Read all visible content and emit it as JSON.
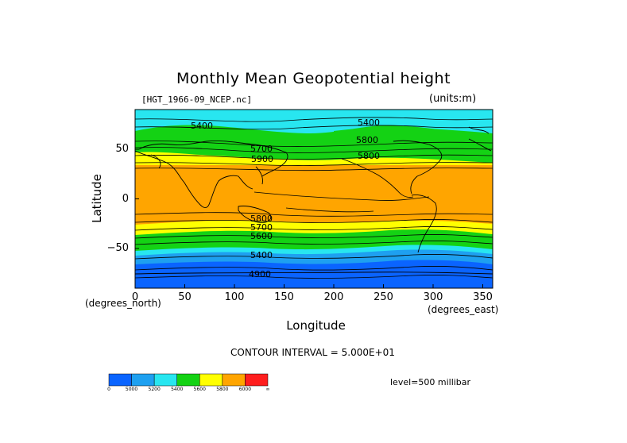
{
  "title": "Monthly Mean Geopotential height",
  "file_label": "[HGT_1966-09_NCEP.nc]",
  "units_label": "(units:m)",
  "x_axis": {
    "label": "Longitude",
    "units": "(degrees_east)",
    "ticks": [
      "0",
      "50",
      "100",
      "150",
      "200",
      "250",
      "300",
      "350"
    ],
    "range": [
      0,
      360
    ]
  },
  "y_axis": {
    "label": "Latitude",
    "units": "(degrees_north)",
    "ticks": [
      "50",
      "0",
      "−50"
    ],
    "tick_values": [
      50,
      0,
      -50
    ],
    "range": [
      -90,
      90
    ]
  },
  "contour_interval": "CONTOUR INTERVAL = 5.000E+01",
  "level": "level=500 millibar",
  "contour_labels": [
    "5400",
    "5700",
    "5400",
    "5800",
    "5800",
    "5900",
    "5800",
    "5700",
    "5600",
    "5400",
    "4900"
  ],
  "colorbar": {
    "colors": [
      "#0a64ff",
      "#1ea0f0",
      "#28e6f0",
      "#14d214",
      "#ffff00",
      "#ffa500",
      "#ff1e1e"
    ],
    "labels": [
      "0",
      "5000",
      "5200",
      "5400",
      "5600",
      "5800",
      "6000",
      "∞"
    ]
  },
  "colors": {
    "band_polar": "#0a64ff",
    "band_subpolar": "#1ea0f0",
    "band_cyan": "#28e6f0",
    "band_green": "#14d214",
    "band_yellow": "#ffff00",
    "band_tropics": "#ffa500"
  }
}
